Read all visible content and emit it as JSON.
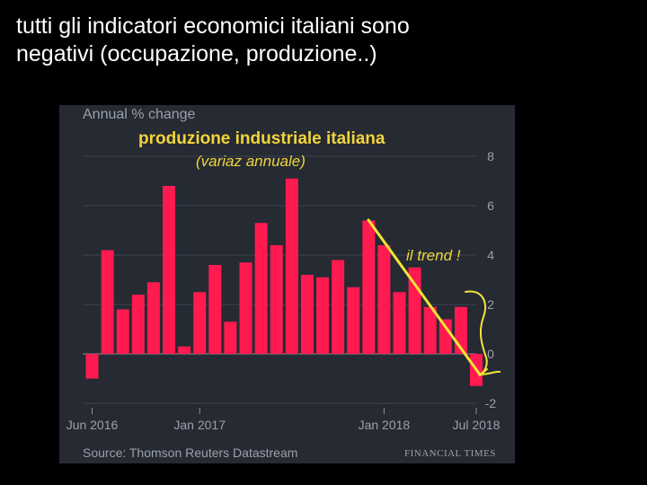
{
  "slide": {
    "title_line1": "tutti gli indicatori economici italiani sono",
    "title_line2": "negativi (occupazione, produzione..)"
  },
  "chart_data": {
    "type": "bar",
    "subtitle": "Annual % change",
    "ylim": [
      -2,
      9
    ],
    "yticks": [
      -2,
      0,
      2,
      4,
      6,
      8
    ],
    "grid": true,
    "xtick_labels": [
      {
        "index": 0,
        "label": "Jun 2016"
      },
      {
        "index": 7,
        "label": "Jan 2017"
      },
      {
        "index": 19,
        "label": "Jan 2018"
      },
      {
        "index": 25,
        "label": "Jul 2018"
      }
    ],
    "categories": [
      "2016-06",
      "2016-07",
      "2016-08",
      "2016-09",
      "2016-10",
      "2016-11",
      "2016-12",
      "2017-01",
      "2017-02",
      "2017-03",
      "2017-04",
      "2017-05",
      "2017-06",
      "2017-07",
      "2017-08",
      "2017-09",
      "2017-10",
      "2017-11",
      "2017-12",
      "2018-01",
      "2018-02",
      "2018-03",
      "2018-04",
      "2018-05",
      "2018-06",
      "2018-07"
    ],
    "values": [
      -1.0,
      4.2,
      1.8,
      2.4,
      2.9,
      6.8,
      0.3,
      2.5,
      3.6,
      1.3,
      3.7,
      5.3,
      4.4,
      7.1,
      3.2,
      3.1,
      3.8,
      2.7,
      5.4,
      4.4,
      2.5,
      3.5,
      1.9,
      1.4,
      1.9,
      -1.3
    ],
    "color": "#ff1a50",
    "source": "Source: Thomson Reuters Datastream",
    "brand": "FINANCIAL TIMES",
    "annotations": {
      "title": "produzione industriale italiana",
      "subtitle": "(variaz annuale)",
      "trend_label": "il trend !",
      "color": "#f2e536"
    }
  }
}
